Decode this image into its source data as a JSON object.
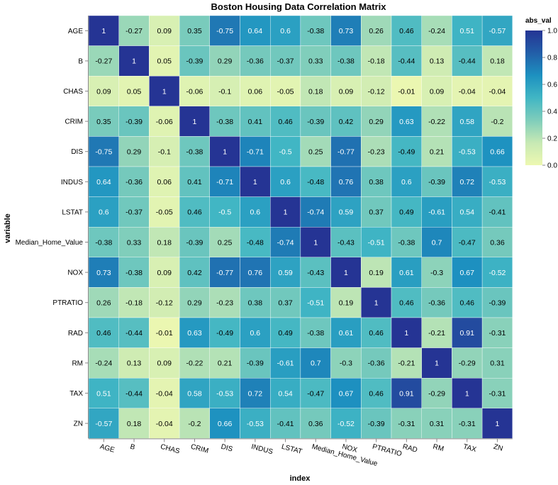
{
  "chart_data": {
    "type": "heatmap",
    "title": "Boston Housing Data Correlation Matrix",
    "xlabel": "index",
    "ylabel": "variable",
    "x_categories": [
      "AGE",
      "B",
      "CHAS",
      "CRIM",
      "DIS",
      "INDUS",
      "LSTAT",
      "Median_Home_Value",
      "NOX",
      "PTRATIO",
      "RAD",
      "RM",
      "TAX",
      "ZN"
    ],
    "y_categories": [
      "AGE",
      "B",
      "CHAS",
      "CRIM",
      "DIS",
      "INDUS",
      "LSTAT",
      "Median_Home_Value",
      "NOX",
      "PTRATIO",
      "RAD",
      "RM",
      "TAX",
      "ZN"
    ],
    "values": [
      [
        1,
        -0.27,
        0.09,
        0.35,
        -0.75,
        0.64,
        0.6,
        -0.38,
        0.73,
        0.26,
        0.46,
        -0.24,
        0.51,
        -0.57
      ],
      [
        -0.27,
        1,
        0.05,
        -0.39,
        0.29,
        -0.36,
        -0.37,
        0.33,
        -0.38,
        -0.18,
        -0.44,
        0.13,
        -0.44,
        0.18
      ],
      [
        0.09,
        0.05,
        1,
        -0.06,
        -0.1,
        0.06,
        -0.05,
        0.18,
        0.09,
        -0.12,
        -0.01,
        0.09,
        -0.04,
        -0.04
      ],
      [
        0.35,
        -0.39,
        -0.06,
        1,
        -0.38,
        0.41,
        0.46,
        -0.39,
        0.42,
        0.29,
        0.63,
        -0.22,
        0.58,
        -0.2
      ],
      [
        -0.75,
        0.29,
        -0.1,
        -0.38,
        1,
        -0.71,
        -0.5,
        0.25,
        -0.77,
        -0.23,
        -0.49,
        0.21,
        -0.53,
        0.66
      ],
      [
        0.64,
        -0.36,
        0.06,
        0.41,
        -0.71,
        1,
        0.6,
        -0.48,
        0.76,
        0.38,
        0.6,
        -0.39,
        0.72,
        -0.53
      ],
      [
        0.6,
        -0.37,
        -0.05,
        0.46,
        -0.5,
        0.6,
        1,
        -0.74,
        0.59,
        0.37,
        0.49,
        -0.61,
        0.54,
        -0.41
      ],
      [
        -0.38,
        0.33,
        0.18,
        -0.39,
        0.25,
        -0.48,
        -0.74,
        1,
        -0.43,
        -0.51,
        -0.38,
        0.7,
        -0.47,
        0.36
      ],
      [
        0.73,
        -0.38,
        0.09,
        0.42,
        -0.77,
        0.76,
        0.59,
        -0.43,
        1,
        0.19,
        0.61,
        -0.3,
        0.67,
        -0.52
      ],
      [
        0.26,
        -0.18,
        -0.12,
        0.29,
        -0.23,
        0.38,
        0.37,
        -0.51,
        0.19,
        1,
        0.46,
        -0.36,
        0.46,
        -0.39
      ],
      [
        0.46,
        -0.44,
        -0.01,
        0.63,
        -0.49,
        0.6,
        0.49,
        -0.38,
        0.61,
        0.46,
        1,
        -0.21,
        0.91,
        -0.31
      ],
      [
        -0.24,
        0.13,
        0.09,
        -0.22,
        0.21,
        -0.39,
        -0.61,
        0.7,
        -0.3,
        -0.36,
        -0.21,
        1,
        -0.29,
        0.31
      ],
      [
        0.51,
        -0.44,
        -0.04,
        0.58,
        -0.53,
        0.72,
        0.54,
        -0.47,
        0.67,
        0.46,
        0.91,
        -0.29,
        1,
        -0.31
      ],
      [
        -0.57,
        0.18,
        -0.04,
        -0.2,
        0.66,
        -0.53,
        -0.41,
        0.36,
        -0.52,
        -0.39,
        -0.31,
        0.31,
        -0.31,
        1
      ]
    ],
    "color_field": "abs_val",
    "legend": {
      "title": "abs_val",
      "ticks": [
        "0.0",
        "0.2",
        "0.4",
        "0.6",
        "0.8",
        "1.0"
      ],
      "range": [
        0,
        1
      ],
      "placement": "top-right"
    },
    "colorscale": [
      "#edf8b1",
      "#c7e9b4",
      "#7fcdbb",
      "#41b6c4",
      "#1d91c0",
      "#225ea8",
      "#253494"
    ],
    "grid": false
  }
}
